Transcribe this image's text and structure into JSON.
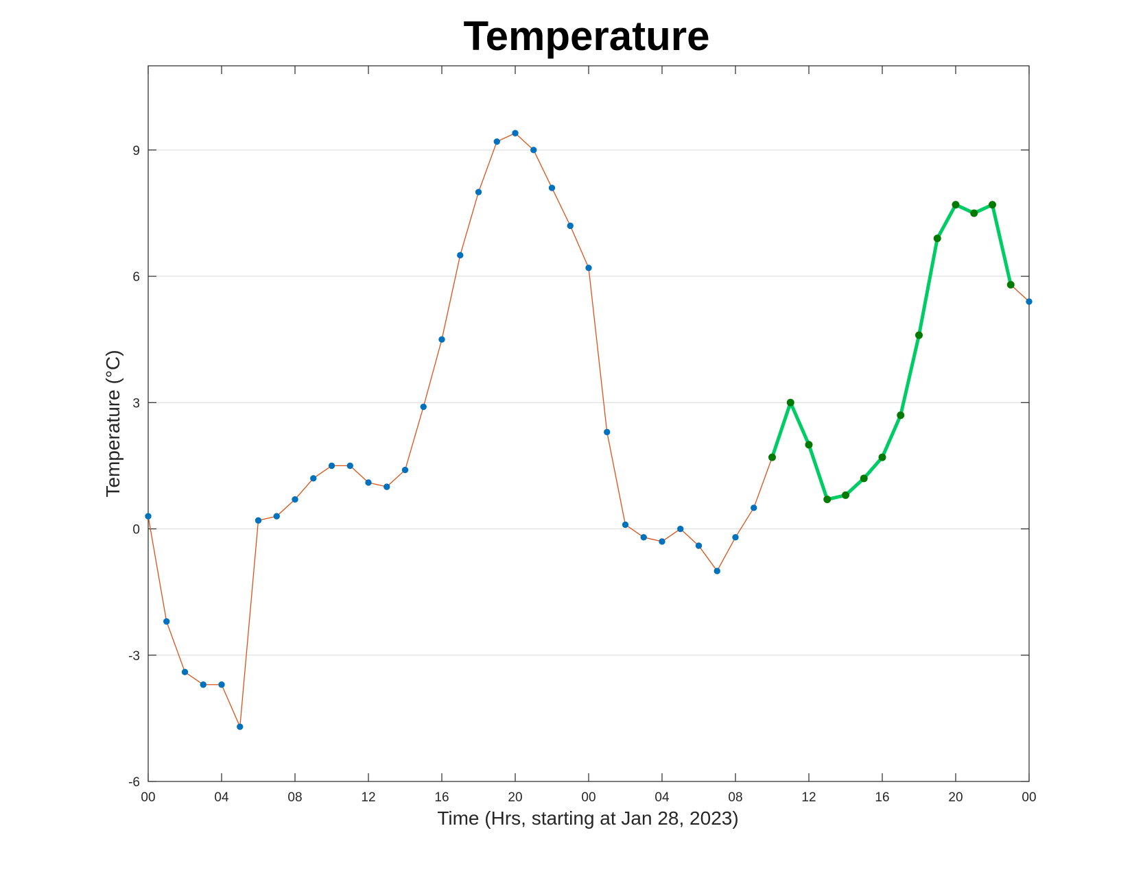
{
  "chart_data": {
    "type": "line",
    "title": "Temperature",
    "xlabel": "Time (Hrs, starting at Jan 28, 2023)",
    "ylabel": "Temperature (°C)",
    "xlim": [
      0,
      48
    ],
    "ylim": [
      -6,
      11
    ],
    "x_ticks": [
      0,
      4,
      8,
      12,
      16,
      20,
      24,
      28,
      32,
      36,
      40,
      44,
      48
    ],
    "x_tick_labels": [
      "00",
      "04",
      "08",
      "12",
      "16",
      "20",
      "00",
      "04",
      "08",
      "12",
      "16",
      "20",
      "00"
    ],
    "y_ticks": [
      -6,
      -3,
      0,
      3,
      6,
      9
    ],
    "y_tick_labels": [
      "-6",
      "-3",
      "0",
      "3",
      "6",
      "9"
    ],
    "grid": "horizontal",
    "legend": "none",
    "series": [
      {
        "style": "thin-line-with-markers",
        "line_color": "#d95319",
        "marker_color": "#0072bd",
        "x": [
          0,
          1,
          2,
          3,
          4,
          5,
          6,
          7,
          8,
          9,
          10,
          11,
          12,
          13,
          14,
          15,
          16,
          17,
          18,
          19,
          20,
          21,
          22,
          23,
          24,
          25,
          26,
          27,
          28,
          29,
          30,
          31,
          32,
          33,
          34,
          35,
          36,
          37,
          38,
          39,
          40,
          41,
          42,
          43,
          44,
          45,
          46,
          47,
          48
        ],
        "values": [
          0.3,
          -2.2,
          -3.4,
          -3.7,
          -3.7,
          -4.7,
          0.2,
          0.3,
          0.7,
          1.2,
          1.5,
          1.5,
          1.1,
          1.0,
          1.4,
          2.9,
          4.5,
          6.5,
          8.0,
          9.2,
          9.4,
          9.0,
          8.1,
          7.2,
          6.2,
          2.3,
          0.1,
          -0.2,
          -0.3,
          0.0,
          -0.4,
          -1.0,
          -0.2,
          0.5,
          1.7,
          3.0,
          2.0,
          0.7,
          0.8,
          1.2,
          1.7,
          2.7,
          4.6,
          6.9,
          7.7,
          7.5,
          7.7,
          5.8,
          5.4
        ]
      },
      {
        "style": "thick-line-with-markers",
        "line_color": "#00cc66",
        "marker_color": "#007a00",
        "x": [
          34,
          35,
          36,
          37,
          38,
          39,
          40,
          41,
          42,
          43,
          44,
          45,
          46,
          47
        ],
        "values": [
          1.7,
          3.0,
          2.0,
          0.7,
          0.8,
          1.2,
          1.7,
          2.7,
          4.6,
          6.9,
          7.7,
          7.5,
          7.7,
          5.8
        ]
      }
    ]
  }
}
